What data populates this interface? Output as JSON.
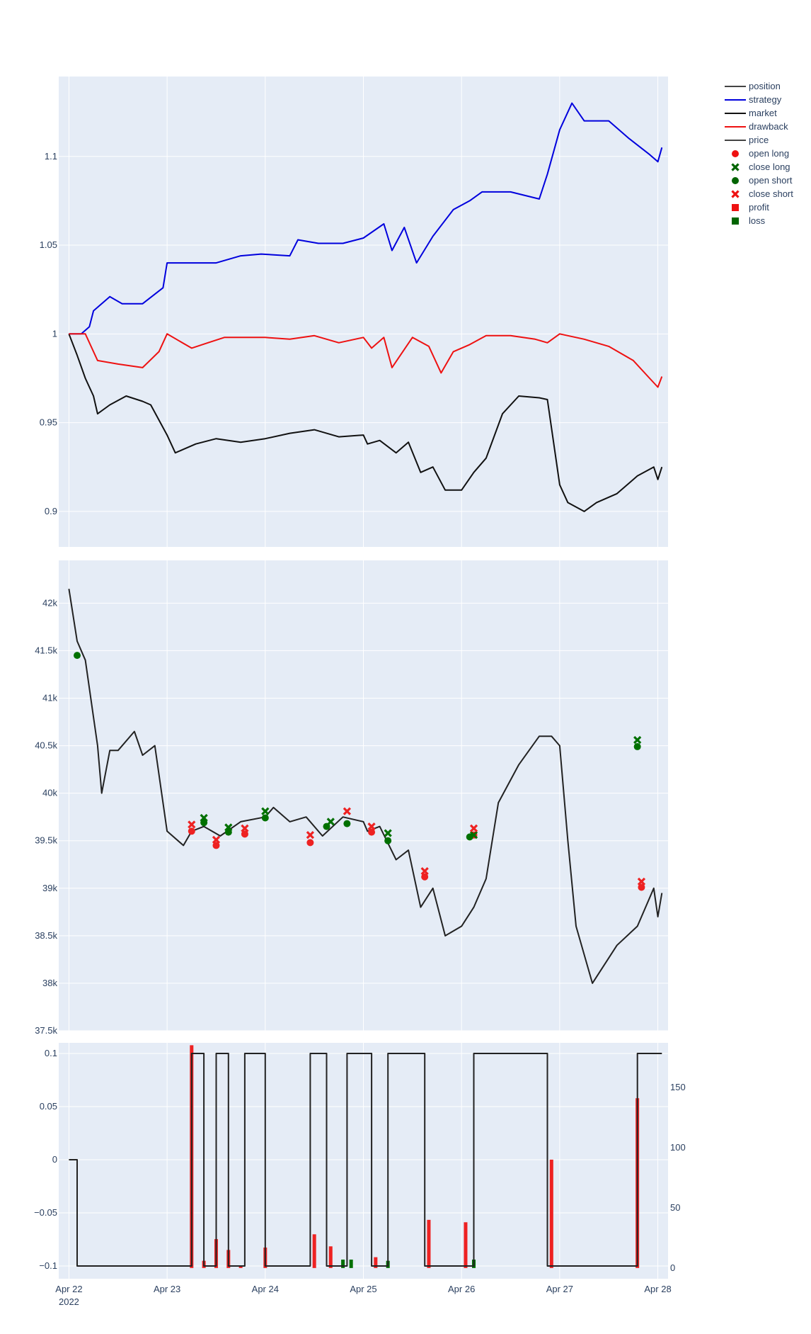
{
  "chart_data": [
    {
      "panel": "equity",
      "type": "line",
      "x_range": [
        "2022-04-21T21:30",
        "2022-04-28T02:30"
      ],
      "ylim": [
        0.88,
        1.145
      ],
      "yticks": [
        0.9,
        0.95,
        1,
        1.05,
        1.1
      ],
      "ytick_labels": [
        "0.9",
        "0.95",
        "1",
        "1.05",
        "1.1"
      ],
      "grid": true,
      "series": [
        {
          "name": "strategy",
          "color": "#0000dd",
          "x": [
            "2022-04-22T00:00",
            "2022-04-22T03:00",
            "2022-04-22T05:00",
            "2022-04-22T06:00",
            "2022-04-22T10:00",
            "2022-04-22T13:00",
            "2022-04-22T18:00",
            "2022-04-22T23:00",
            "2022-04-23T00:00",
            "2022-04-23T03:00",
            "2022-04-23T12:00",
            "2022-04-23T18:00",
            "2022-04-23T23:00",
            "2022-04-24T06:00",
            "2022-04-24T08:00",
            "2022-04-24T13:00",
            "2022-04-24T19:00",
            "2022-04-25T00:00",
            "2022-04-25T05:00",
            "2022-04-25T07:00",
            "2022-04-25T10:00",
            "2022-04-25T13:00",
            "2022-04-25T17:00",
            "2022-04-25T22:00",
            "2022-04-26T02:00",
            "2022-04-26T05:00",
            "2022-04-26T12:00",
            "2022-04-26T19:00",
            "2022-04-26T21:00",
            "2022-04-27T00:00",
            "2022-04-27T03:00",
            "2022-04-27T06:00",
            "2022-04-27T12:00",
            "2022-04-27T17:00",
            "2022-04-27T22:00",
            "2022-04-28T00:00",
            "2022-04-28T01:00"
          ],
          "values": [
            1.0,
            1.0,
            1.004,
            1.013,
            1.021,
            1.017,
            1.017,
            1.026,
            1.04,
            1.04,
            1.04,
            1.044,
            1.045,
            1.044,
            1.053,
            1.051,
            1.051,
            1.054,
            1.062,
            1.047,
            1.06,
            1.04,
            1.055,
            1.07,
            1.075,
            1.08,
            1.08,
            1.076,
            1.09,
            1.115,
            1.13,
            1.12,
            1.12,
            1.11,
            1.101,
            1.097,
            1.105
          ]
        },
        {
          "name": "market",
          "color": "#111111",
          "x": [
            "2022-04-22T00:00",
            "2022-04-22T02:00",
            "2022-04-22T04:00",
            "2022-04-22T06:00",
            "2022-04-22T07:00",
            "2022-04-22T10:00",
            "2022-04-22T14:00",
            "2022-04-22T18:00",
            "2022-04-22T20:00",
            "2022-04-23T00:00",
            "2022-04-23T02:00",
            "2022-04-23T07:00",
            "2022-04-23T12:00",
            "2022-04-23T18:00",
            "2022-04-24T00:00",
            "2022-04-24T06:00",
            "2022-04-24T12:00",
            "2022-04-24T18:00",
            "2022-04-25T00:00",
            "2022-04-25T01:00",
            "2022-04-25T04:00",
            "2022-04-25T08:00",
            "2022-04-25T11:00",
            "2022-04-25T14:00",
            "2022-04-25T17:00",
            "2022-04-25T20:00",
            "2022-04-26T00:00",
            "2022-04-26T03:00",
            "2022-04-26T06:00",
            "2022-04-26T10:00",
            "2022-04-26T14:00",
            "2022-04-26T19:00",
            "2022-04-26T21:00",
            "2022-04-27T00:00",
            "2022-04-27T02:00",
            "2022-04-27T06:00",
            "2022-04-27T09:00",
            "2022-04-27T14:00",
            "2022-04-27T19:00",
            "2022-04-27T23:00",
            "2022-04-28T00:00",
            "2022-04-28T01:00"
          ],
          "values": [
            1.0,
            0.988,
            0.975,
            0.965,
            0.955,
            0.96,
            0.965,
            0.962,
            0.96,
            0.943,
            0.933,
            0.938,
            0.941,
            0.939,
            0.941,
            0.944,
            0.946,
            0.942,
            0.943,
            0.938,
            0.94,
            0.933,
            0.939,
            0.922,
            0.925,
            0.912,
            0.912,
            0.922,
            0.93,
            0.955,
            0.965,
            0.964,
            0.963,
            0.915,
            0.905,
            0.9,
            0.905,
            0.91,
            0.92,
            0.925,
            0.918,
            0.925
          ]
        },
        {
          "name": "drawback",
          "color": "#ee1111",
          "x": [
            "2022-04-22T00:00",
            "2022-04-22T02:00",
            "2022-04-22T04:00",
            "2022-04-22T07:00",
            "2022-04-22T12:00",
            "2022-04-22T18:00",
            "2022-04-22T22:00",
            "2022-04-23T00:00",
            "2022-04-23T06:00",
            "2022-04-23T10:00",
            "2022-04-23T14:00",
            "2022-04-24T00:00",
            "2022-04-24T06:00",
            "2022-04-24T12:00",
            "2022-04-24T18:00",
            "2022-04-25T00:00",
            "2022-04-25T02:00",
            "2022-04-25T05:00",
            "2022-04-25T07:00",
            "2022-04-25T12:00",
            "2022-04-25T16:00",
            "2022-04-25T19:00",
            "2022-04-25T22:00",
            "2022-04-26T02:00",
            "2022-04-26T06:00",
            "2022-04-26T12:00",
            "2022-04-26T18:00",
            "2022-04-26T21:00",
            "2022-04-27T00:00",
            "2022-04-27T06:00",
            "2022-04-27T12:00",
            "2022-04-27T18:00",
            "2022-04-27T22:00",
            "2022-04-28T00:00",
            "2022-04-28T01:00"
          ],
          "values": [
            1.0,
            1.0,
            1.0,
            0.985,
            0.983,
            0.981,
            0.99,
            1.0,
            0.992,
            0.995,
            0.998,
            0.998,
            0.997,
            0.999,
            0.995,
            0.998,
            0.992,
            0.998,
            0.981,
            0.998,
            0.993,
            0.978,
            0.99,
            0.994,
            0.999,
            0.999,
            0.997,
            0.995,
            1.0,
            0.997,
            0.993,
            0.985,
            0.975,
            0.97,
            0.976
          ]
        }
      ]
    },
    {
      "panel": "price",
      "type": "line",
      "x_range": [
        "2022-04-21T21:30",
        "2022-04-28T02:30"
      ],
      "ylim": [
        37500,
        42450
      ],
      "yticks": [
        37500,
        38000,
        38500,
        39000,
        39500,
        40000,
        40500,
        41000,
        41500,
        42000
      ],
      "ytick_labels": [
        "37.5k",
        "38k",
        "38.5k",
        "39k",
        "39.5k",
        "40k",
        "40.5k",
        "41k",
        "41.5k",
        "42k"
      ],
      "grid": true,
      "series": [
        {
          "name": "price",
          "color": "#222222",
          "x": [
            "2022-04-22T00:00",
            "2022-04-22T02:00",
            "2022-04-22T04:00",
            "2022-04-22T06:00",
            "2022-04-22T07:00",
            "2022-04-22T08:00",
            "2022-04-22T10:00",
            "2022-04-22T12:00",
            "2022-04-22T16:00",
            "2022-04-22T18:00",
            "2022-04-22T21:00",
            "2022-04-23T00:00",
            "2022-04-23T04:00",
            "2022-04-23T06:00",
            "2022-04-23T09:00",
            "2022-04-23T13:00",
            "2022-04-23T18:00",
            "2022-04-24T00:00",
            "2022-04-24T02:00",
            "2022-04-24T06:00",
            "2022-04-24T10:00",
            "2022-04-24T14:00",
            "2022-04-24T19:00",
            "2022-04-25T00:00",
            "2022-04-25T01:00",
            "2022-04-25T04:00",
            "2022-04-25T08:00",
            "2022-04-25T11:00",
            "2022-04-25T14:00",
            "2022-04-25T17:00",
            "2022-04-25T20:00",
            "2022-04-26T00:00",
            "2022-04-26T03:00",
            "2022-04-26T06:00",
            "2022-04-26T09:00",
            "2022-04-26T14:00",
            "2022-04-26T19:00",
            "2022-04-26T22:00",
            "2022-04-27T00:00",
            "2022-04-27T02:00",
            "2022-04-27T04:00",
            "2022-04-27T08:00",
            "2022-04-27T14:00",
            "2022-04-27T19:00",
            "2022-04-27T23:00",
            "2022-04-28T00:00",
            "2022-04-28T01:00"
          ],
          "values": [
            42150,
            41600,
            41400,
            40800,
            40500,
            40000,
            40450,
            40450,
            40650,
            40400,
            40500,
            39600,
            39450,
            39600,
            39650,
            39550,
            39700,
            39750,
            39850,
            39700,
            39750,
            39550,
            39750,
            39700,
            39600,
            39650,
            39300,
            39400,
            38800,
            39000,
            38500,
            38600,
            38800,
            39100,
            39900,
            40300,
            40600,
            40600,
            40500,
            39500,
            38600,
            38000,
            38400,
            38600,
            39000,
            38700,
            38950
          ]
        }
      ]
    },
    {
      "panel": "position",
      "type": "line",
      "x_range": [
        "2022-04-21T21:30",
        "2022-04-28T02:30"
      ],
      "ylim": [
        -0.112,
        0.11
      ],
      "yticks": [
        -0.1,
        -0.05,
        0,
        0.05,
        0.1
      ],
      "ytick_labels": [
        "−0.1",
        "−0.05",
        "0",
        "0.05",
        "0.1"
      ],
      "y2lim": [
        -8.9,
        187
      ],
      "y2ticks": [
        0,
        50,
        100,
        150
      ],
      "y2tick_labels": [
        "0",
        "50",
        "100",
        "150"
      ],
      "grid": true,
      "series": [
        {
          "name": "position",
          "color": "#222222",
          "shape": "hv",
          "x": [
            "2022-04-22T00:00",
            "2022-04-22T02:00",
            "2022-04-23T06:00",
            "2022-04-23T09:00",
            "2022-04-23T12:00",
            "2022-04-23T15:00",
            "2022-04-23T19:00",
            "2022-04-24T00:00",
            "2022-04-24T11:00",
            "2022-04-24T15:00",
            "2022-04-24T20:00",
            "2022-04-25T02:00",
            "2022-04-25T06:00",
            "2022-04-25T15:00",
            "2022-04-26T03:00",
            "2022-04-26T21:00",
            "2022-04-27T19:00",
            "2022-04-28T00:00",
            "2022-04-28T01:00"
          ],
          "values": [
            0,
            -0.1,
            0.1,
            -0.1,
            0.1,
            -0.1,
            0.1,
            -0.1,
            0.1,
            -0.1,
            0.1,
            -0.1,
            0.1,
            -0.1,
            0.1,
            -0.1,
            0.1,
            0.1,
            0.1
          ]
        }
      ],
      "bars": {
        "axis": "y2",
        "x": [
          "2022-04-23T06:00",
          "2022-04-23T09:00",
          "2022-04-23T12:00",
          "2022-04-23T15:00",
          "2022-04-23T18:00",
          "2022-04-24T00:00",
          "2022-04-24T12:00",
          "2022-04-24T16:00",
          "2022-04-24T19:00",
          "2022-04-24T21:00",
          "2022-04-25T03:00",
          "2022-04-25T06:00",
          "2022-04-25T16:00",
          "2022-04-26T01:00",
          "2022-04-26T03:00",
          "2022-04-26T22:00",
          "2022-04-27T19:00"
        ],
        "values": [
          185,
          6,
          24,
          15,
          2,
          17,
          28,
          18,
          7,
          7,
          9,
          6,
          40,
          38,
          7,
          90,
          141
        ],
        "kind": [
          "profit",
          "profit",
          "profit",
          "profit",
          "profit",
          "profit",
          "profit",
          "profit",
          "loss",
          "loss",
          "profit",
          "loss",
          "profit",
          "profit",
          "loss",
          "profit",
          "profit"
        ]
      }
    }
  ],
  "trade_markers": {
    "open_long": {
      "x": [
        "2022-04-23T06:00",
        "2022-04-23T12:00",
        "2022-04-23T19:00",
        "2022-04-24T11:00",
        "2022-04-25T02:00",
        "2022-04-25T15:00",
        "2022-04-26T03:00",
        "2022-04-27T20:00"
      ],
      "y": [
        39600,
        39450,
        39570,
        39480,
        39590,
        39120,
        39560,
        39010
      ]
    },
    "close_long": {
      "x": [
        "2022-04-23T09:00",
        "2022-04-23T15:00",
        "2022-04-24T00:00",
        "2022-04-24T16:00",
        "2022-04-25T06:00",
        "2022-04-26T03:00",
        "2022-04-27T19:00"
      ],
      "y": [
        39740,
        39640,
        39810,
        39700,
        39580,
        39560,
        40560
      ]
    },
    "open_short": {
      "x": [
        "2022-04-22T02:00",
        "2022-04-23T09:00",
        "2022-04-23T15:00",
        "2022-04-24T00:00",
        "2022-04-24T15:00",
        "2022-04-24T20:00",
        "2022-04-25T06:00",
        "2022-04-26T02:00",
        "2022-04-27T19:00"
      ],
      "y": [
        41450,
        39690,
        39590,
        39740,
        39650,
        39680,
        39500,
        39540,
        40490
      ]
    },
    "close_short": {
      "x": [
        "2022-04-23T06:00",
        "2022-04-23T12:00",
        "2022-04-23T19:00",
        "2022-04-24T11:00",
        "2022-04-24T20:00",
        "2022-04-25T02:00",
        "2022-04-25T15:00",
        "2022-04-26T03:00",
        "2022-04-27T20:00"
      ],
      "y": [
        39670,
        39510,
        39630,
        39560,
        39810,
        39650,
        39180,
        39630,
        39070
      ]
    }
  },
  "xaxis": {
    "ticks": [
      "2022-04-22T00:00",
      "2022-04-23T00:00",
      "2022-04-24T00:00",
      "2022-04-25T00:00",
      "2022-04-26T00:00",
      "2022-04-27T00:00",
      "2022-04-28T00:00"
    ],
    "tick_labels": [
      "Apr 22",
      "Apr 23",
      "Apr 24",
      "Apr 25",
      "Apr 26",
      "Apr 27",
      "Apr 28"
    ],
    "year_label": "2022"
  },
  "legend": {
    "placement": "top-right",
    "items": [
      {
        "label": "position",
        "symbol": "line",
        "color": "#444444"
      },
      {
        "label": "strategy",
        "symbol": "line",
        "color": "#0000dd"
      },
      {
        "label": "market",
        "symbol": "line",
        "color": "#111111"
      },
      {
        "label": "drawback",
        "symbol": "line",
        "color": "#ee1111"
      },
      {
        "label": "price",
        "symbol": "line",
        "color": "#444444"
      },
      {
        "label": "open long",
        "symbol": "circle",
        "color": "#ee1111"
      },
      {
        "label": "close long",
        "symbol": "x",
        "color": "#006400"
      },
      {
        "label": "open short",
        "symbol": "circle",
        "color": "#006400"
      },
      {
        "label": "close short",
        "symbol": "x",
        "color": "#ee1111"
      },
      {
        "label": "profit",
        "symbol": "square",
        "color": "#ee1111"
      },
      {
        "label": "loss",
        "symbol": "square",
        "color": "#006400"
      }
    ]
  },
  "colors": {
    "plot_bg": "#e5ecf6",
    "grid": "#ffffff",
    "profit": "#ee2222",
    "loss": "#007000",
    "tick_text": "#2a3f5f"
  }
}
